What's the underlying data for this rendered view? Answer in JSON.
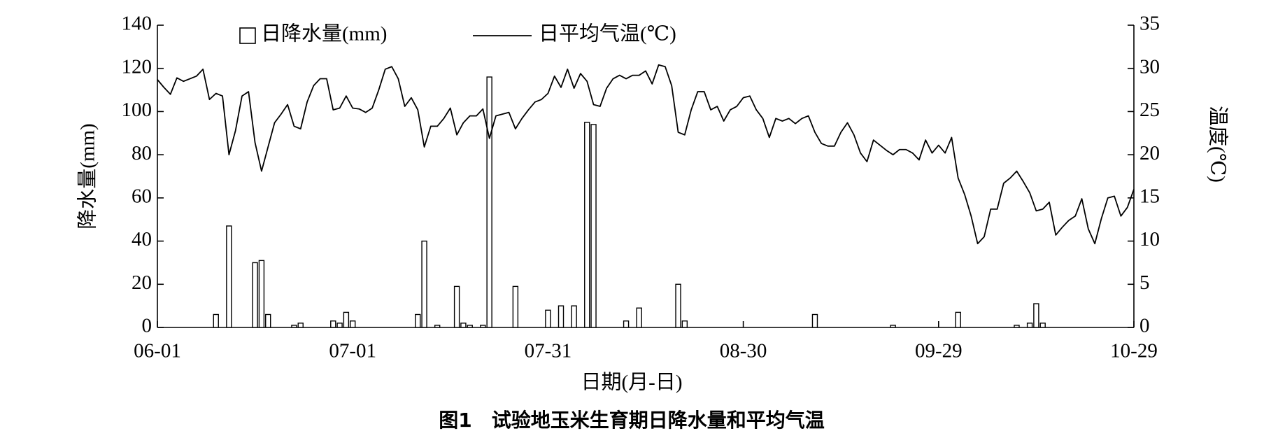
{
  "chart_data": {
    "type": "combo",
    "title": "图1　试验地玉米生育期日降水量和平均气温",
    "xlabel": "日期(月-日)",
    "ylabel": "降水量(mm)",
    "y2label": "温度(℃)",
    "categories": [
      "06-01",
      null,
      null,
      null,
      null,
      null,
      null,
      null,
      null,
      null,
      null,
      null,
      null,
      null,
      null,
      null,
      null,
      null,
      null,
      null,
      null,
      null,
      null,
      null,
      null,
      null,
      null,
      null,
      null,
      null,
      "07-01",
      null,
      null,
      null,
      null,
      null,
      null,
      null,
      null,
      null,
      null,
      null,
      null,
      null,
      null,
      null,
      null,
      null,
      null,
      null,
      null,
      null,
      null,
      null,
      null,
      null,
      null,
      null,
      null,
      null,
      "07-31",
      null,
      null,
      null,
      null,
      null,
      null,
      null,
      null,
      null,
      null,
      null,
      null,
      null,
      null,
      null,
      null,
      null,
      null,
      null,
      null,
      null,
      null,
      null,
      null,
      null,
      null,
      null,
      null,
      null,
      "08-30",
      null,
      null,
      null,
      null,
      null,
      null,
      null,
      null,
      null,
      null,
      null,
      null,
      null,
      null,
      null,
      null,
      null,
      null,
      null,
      null,
      null,
      null,
      null,
      null,
      null,
      null,
      null,
      null,
      null,
      "09-29",
      null,
      null,
      null,
      null,
      null,
      null,
      null,
      null,
      null,
      null,
      null,
      null,
      null,
      null,
      null,
      null,
      null,
      null,
      null,
      null,
      null,
      null,
      null,
      null,
      null,
      null,
      null,
      null,
      null,
      "10-29"
    ],
    "ylim": [
      0,
      140
    ],
    "yticks": [
      0,
      20,
      40,
      60,
      80,
      100,
      120,
      140
    ],
    "y2lim": [
      0,
      35
    ],
    "y2ticks": [
      0,
      5,
      10,
      15,
      20,
      25,
      30,
      35
    ],
    "series": [
      {
        "name": "日降水量(mm)",
        "type": "bar",
        "color": "#000000",
        "fill": "#ffffff",
        "values": [
          0,
          0,
          0,
          0,
          0,
          0,
          0,
          0,
          0,
          6,
          0,
          47,
          0,
          0,
          0,
          30,
          31,
          6,
          0,
          0,
          0,
          1,
          2,
          0,
          0,
          0,
          0,
          3,
          2,
          7,
          3,
          0,
          0,
          0,
          0,
          0,
          0,
          0,
          0,
          0,
          6,
          40,
          0,
          1,
          0,
          0,
          19,
          2,
          1,
          0,
          1,
          116,
          0,
          0,
          0,
          19,
          0,
          0,
          0,
          0,
          8,
          0,
          10,
          0,
          10,
          0,
          95,
          94,
          0,
          0,
          0,
          0,
          3,
          0,
          9,
          0,
          0,
          0,
          0,
          0,
          20,
          3,
          0,
          0,
          0,
          0,
          0,
          0,
          0,
          0,
          0,
          0,
          0,
          0,
          0,
          0,
          0,
          0,
          0,
          0,
          0,
          6,
          0,
          0,
          0,
          0,
          0,
          0,
          0,
          0,
          0,
          0,
          0,
          1,
          0,
          0,
          0,
          0,
          0,
          0,
          0,
          0,
          0,
          7,
          0,
          0,
          0,
          0,
          0,
          0,
          0,
          0,
          1,
          0,
          2,
          11,
          2,
          0,
          0,
          0,
          0,
          0,
          0,
          0,
          0,
          0,
          0,
          0,
          0,
          0,
          0
        ]
      },
      {
        "name": "日平均气温(℃)",
        "type": "line",
        "axis": "y2",
        "color": "#000000",
        "values": [
          28.7,
          27.8,
          27.0,
          28.9,
          28.5,
          28.8,
          29.1,
          29.9,
          26.4,
          27.1,
          26.8,
          20.0,
          22.8,
          26.8,
          27.3,
          21.4,
          18.1,
          20.9,
          23.7,
          24.7,
          25.8,
          23.3,
          23.0,
          26.1,
          28.0,
          28.8,
          28.8,
          25.2,
          25.4,
          26.8,
          25.4,
          25.3,
          24.9,
          25.4,
          27.5,
          29.9,
          30.2,
          28.8,
          25.6,
          26.6,
          25.2,
          20.9,
          23.3,
          23.3,
          24.2,
          25.4,
          22.3,
          23.7,
          24.5,
          24.5,
          25.3,
          21.9,
          24.5,
          24.7,
          24.9,
          23.0,
          24.2,
          25.2,
          26.1,
          26.4,
          27.1,
          29.1,
          27.8,
          29.9,
          27.7,
          29.4,
          28.5,
          25.8,
          25.6,
          27.7,
          28.8,
          29.2,
          28.8,
          29.2,
          29.2,
          29.7,
          28.2,
          30.4,
          30.2,
          28.0,
          22.6,
          22.3,
          25.2,
          27.3,
          27.3,
          25.2,
          25.6,
          23.9,
          25.2,
          25.6,
          26.6,
          26.8,
          25.2,
          24.2,
          22.0,
          24.2,
          23.9,
          24.2,
          23.6,
          24.2,
          24.5,
          22.6,
          21.3,
          21.0,
          21.0,
          22.6,
          23.7,
          22.3,
          20.2,
          19.2,
          21.7,
          21.1,
          20.5,
          20.0,
          20.6,
          20.6,
          20.2,
          19.4,
          21.7,
          20.2,
          21.1,
          20.2,
          22.0,
          17.3,
          15.4,
          12.9,
          9.7,
          10.5,
          13.7,
          13.7,
          16.7,
          17.3,
          18.1,
          16.9,
          15.6,
          13.5,
          13.7,
          14.5,
          10.7,
          11.6,
          12.4,
          12.9,
          14.9,
          11.4,
          9.7,
          12.6,
          15.0,
          15.2,
          12.9,
          13.9,
          16.0
        ]
      }
    ]
  }
}
